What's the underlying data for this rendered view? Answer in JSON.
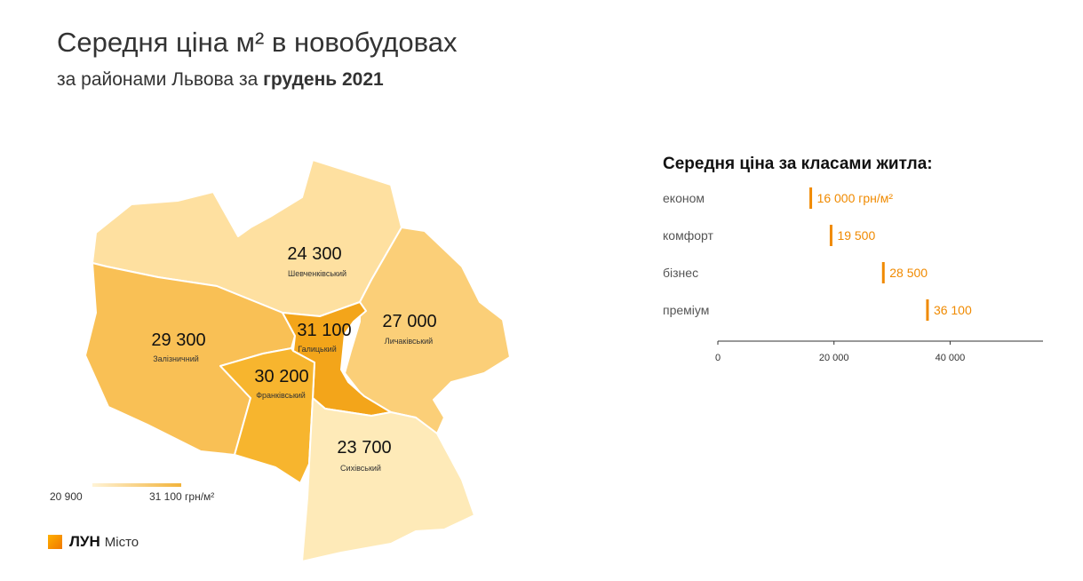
{
  "header": {
    "title": "Середня ціна м² в новобудовах",
    "subtitle_prefix": "за районами Львова за",
    "subtitle_bold": "грудень 2021"
  },
  "map": {
    "districts": [
      {
        "id": "shevchenkivskyi",
        "name": "Шевченківський",
        "value": "24 300",
        "color": "#fee0a0"
      },
      {
        "id": "lychakivskyi",
        "name": "Личаківський",
        "value": "27 000",
        "color": "#fbcf78"
      },
      {
        "id": "zaliznychnyi",
        "name": "Залізничний",
        "value": "29 300",
        "color": "#f9c055"
      },
      {
        "id": "halytskyi",
        "name": "Галицький",
        "value": "31 100",
        "color": "#f3a51a"
      },
      {
        "id": "frankivskyi",
        "name": "Франківський",
        "value": "30 200",
        "color": "#f7b52e"
      },
      {
        "id": "sykhivskyi",
        "name": "Сихівський",
        "value": "23 700",
        "color": "#feeab8"
      }
    ],
    "legend": {
      "min": "20 900",
      "max": "31 100 грн/м²"
    }
  },
  "logo": {
    "brand": "ЛУН",
    "city": "Місто"
  },
  "chart_data": {
    "type": "bar",
    "title": "Середня ціна за класами житла:",
    "categories": [
      "економ",
      "комфорт",
      "бізнес",
      "преміум"
    ],
    "values": [
      16000,
      19500,
      28500,
      36100
    ],
    "value_labels": [
      "16 000 грн/м²",
      "19 500",
      "28 500",
      "36 100"
    ],
    "xlim": [
      0,
      56000
    ],
    "xticks": [
      0,
      20000,
      40000
    ],
    "xtick_labels": [
      "0",
      "20 000",
      "40 000"
    ],
    "bar_color": "#f08a00",
    "label_color": "#f08a00"
  }
}
